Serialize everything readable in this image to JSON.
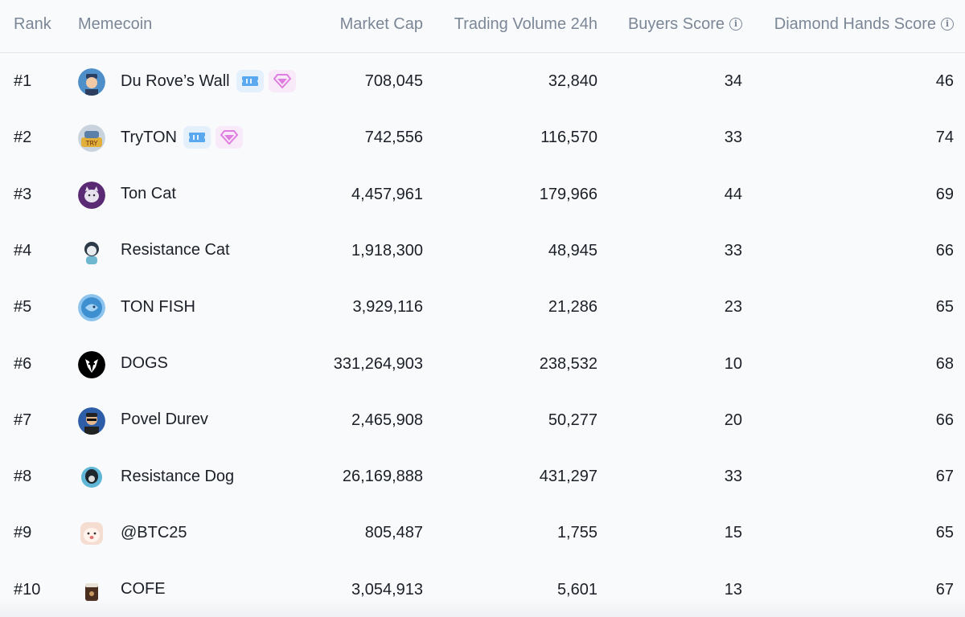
{
  "headers": {
    "rank": "Rank",
    "memecoin": "Memecoin",
    "market_cap": "Market Cap",
    "volume": "Trading Volume 24h",
    "buyers": "Buyers Score",
    "diamond": "Diamond Hands Score",
    "info_glyph": "i"
  },
  "colors": {
    "ticket_badge": "#5aa8f0",
    "gem_badge": "#e07de0",
    "header_text": "#7b8797"
  },
  "rows": [
    {
      "rank": "#1",
      "name": "Du Rove’s Wall",
      "market_cap": "708,045",
      "volume": "32,840",
      "buyers": "34",
      "diamond": "46",
      "badges": [
        "ticket-icon",
        "gem-icon"
      ],
      "avatar": "du-roves-wall-avatar"
    },
    {
      "rank": "#2",
      "name": "TryTON",
      "market_cap": "742,556",
      "volume": "116,570",
      "buyers": "33",
      "diamond": "74",
      "badges": [
        "ticket-icon",
        "gem-icon"
      ],
      "avatar": "tryton-avatar"
    },
    {
      "rank": "#3",
      "name": "Ton Cat",
      "market_cap": "4,457,961",
      "volume": "179,966",
      "buyers": "44",
      "diamond": "69",
      "badges": [],
      "avatar": "ton-cat-avatar"
    },
    {
      "rank": "#4",
      "name": "Resistance Cat",
      "market_cap": "1,918,300",
      "volume": "48,945",
      "buyers": "33",
      "diamond": "66",
      "badges": [],
      "avatar": "resistance-cat-avatar"
    },
    {
      "rank": "#5",
      "name": "TON FISH",
      "market_cap": "3,929,116",
      "volume": "21,286",
      "buyers": "23",
      "diamond": "65",
      "badges": [],
      "avatar": "ton-fish-avatar"
    },
    {
      "rank": "#6",
      "name": "DOGS",
      "market_cap": "331,264,903",
      "volume": "238,532",
      "buyers": "10",
      "diamond": "68",
      "badges": [],
      "avatar": "dogs-avatar"
    },
    {
      "rank": "#7",
      "name": "Povel Durev",
      "market_cap": "2,465,908",
      "volume": "50,277",
      "buyers": "20",
      "diamond": "66",
      "badges": [],
      "avatar": "povel-durev-avatar"
    },
    {
      "rank": "#8",
      "name": "Resistance Dog",
      "market_cap": "26,169,888",
      "volume": "431,297",
      "buyers": "33",
      "diamond": "67",
      "badges": [],
      "avatar": "resistance-dog-avatar"
    },
    {
      "rank": "#9",
      "name": "@BTC25",
      "market_cap": "805,487",
      "volume": "1,755",
      "buyers": "15",
      "diamond": "65",
      "badges": [],
      "avatar": "btc25-avatar"
    },
    {
      "rank": "#10",
      "name": "COFE",
      "market_cap": "3,054,913",
      "volume": "5,601",
      "buyers": "13",
      "diamond": "67",
      "badges": [],
      "avatar": "cofe-avatar"
    }
  ]
}
